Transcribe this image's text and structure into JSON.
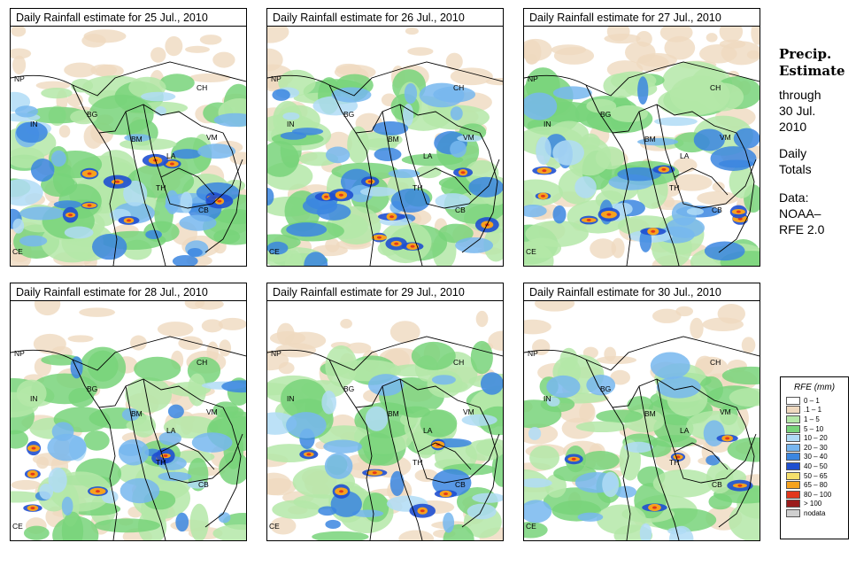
{
  "panels": [
    {
      "title": "Daily Rainfall estimate for  25 Jul., 2010"
    },
    {
      "title": "Daily Rainfall estimate for  26 Jul., 2010"
    },
    {
      "title": "Daily Rainfall estimate for  27 Jul., 2010"
    },
    {
      "title": "Daily Rainfall estimate for  28 Jul., 2010"
    },
    {
      "title": "Daily Rainfall estimate for  29 Jul., 2010"
    },
    {
      "title": "Daily Rainfall estimate for  30 Jul., 2010"
    }
  ],
  "country_labels": [
    "NP",
    "CH",
    "BG",
    "IN",
    "BM",
    "VM",
    "LA",
    "TH",
    "CB",
    "CE"
  ],
  "sidebar": {
    "heading_line1": "Precip.",
    "heading_line2": "Estimate",
    "through": "through",
    "date_line1": "30 Jul.",
    "date_line2": "2010",
    "totals_line1": "Daily",
    "totals_line2": "Totals",
    "data_line1": "Data:",
    "data_line2": "NOAA–",
    "data_line3": "RFE 2.0"
  },
  "legend": {
    "title": "RFE (mm)",
    "items": [
      {
        "label": "0 – 1",
        "color": "#ffffff"
      },
      {
        "label": ".1 – 1",
        "color": "#efd9bf"
      },
      {
        "label": "1 – 5",
        "color": "#b4e8a8"
      },
      {
        "label": "5 – 10",
        "color": "#78d47a"
      },
      {
        "label": "10 – 20",
        "color": "#b0dcf6"
      },
      {
        "label": "20 – 30",
        "color": "#77b7ef"
      },
      {
        "label": "30 – 40",
        "color": "#3b86e0"
      },
      {
        "label": "40 – 50",
        "color": "#1f4fd0"
      },
      {
        "label": "50 – 65",
        "color": "#f6e06a"
      },
      {
        "label": "65 – 80",
        "color": "#f6a21e"
      },
      {
        "label": "80 – 100",
        "color": "#e2371c"
      },
      {
        "label": "> 100",
        "color": "#9a1c1c"
      },
      {
        "label": "nodata",
        "color": "#cfcfcf"
      }
    ]
  }
}
